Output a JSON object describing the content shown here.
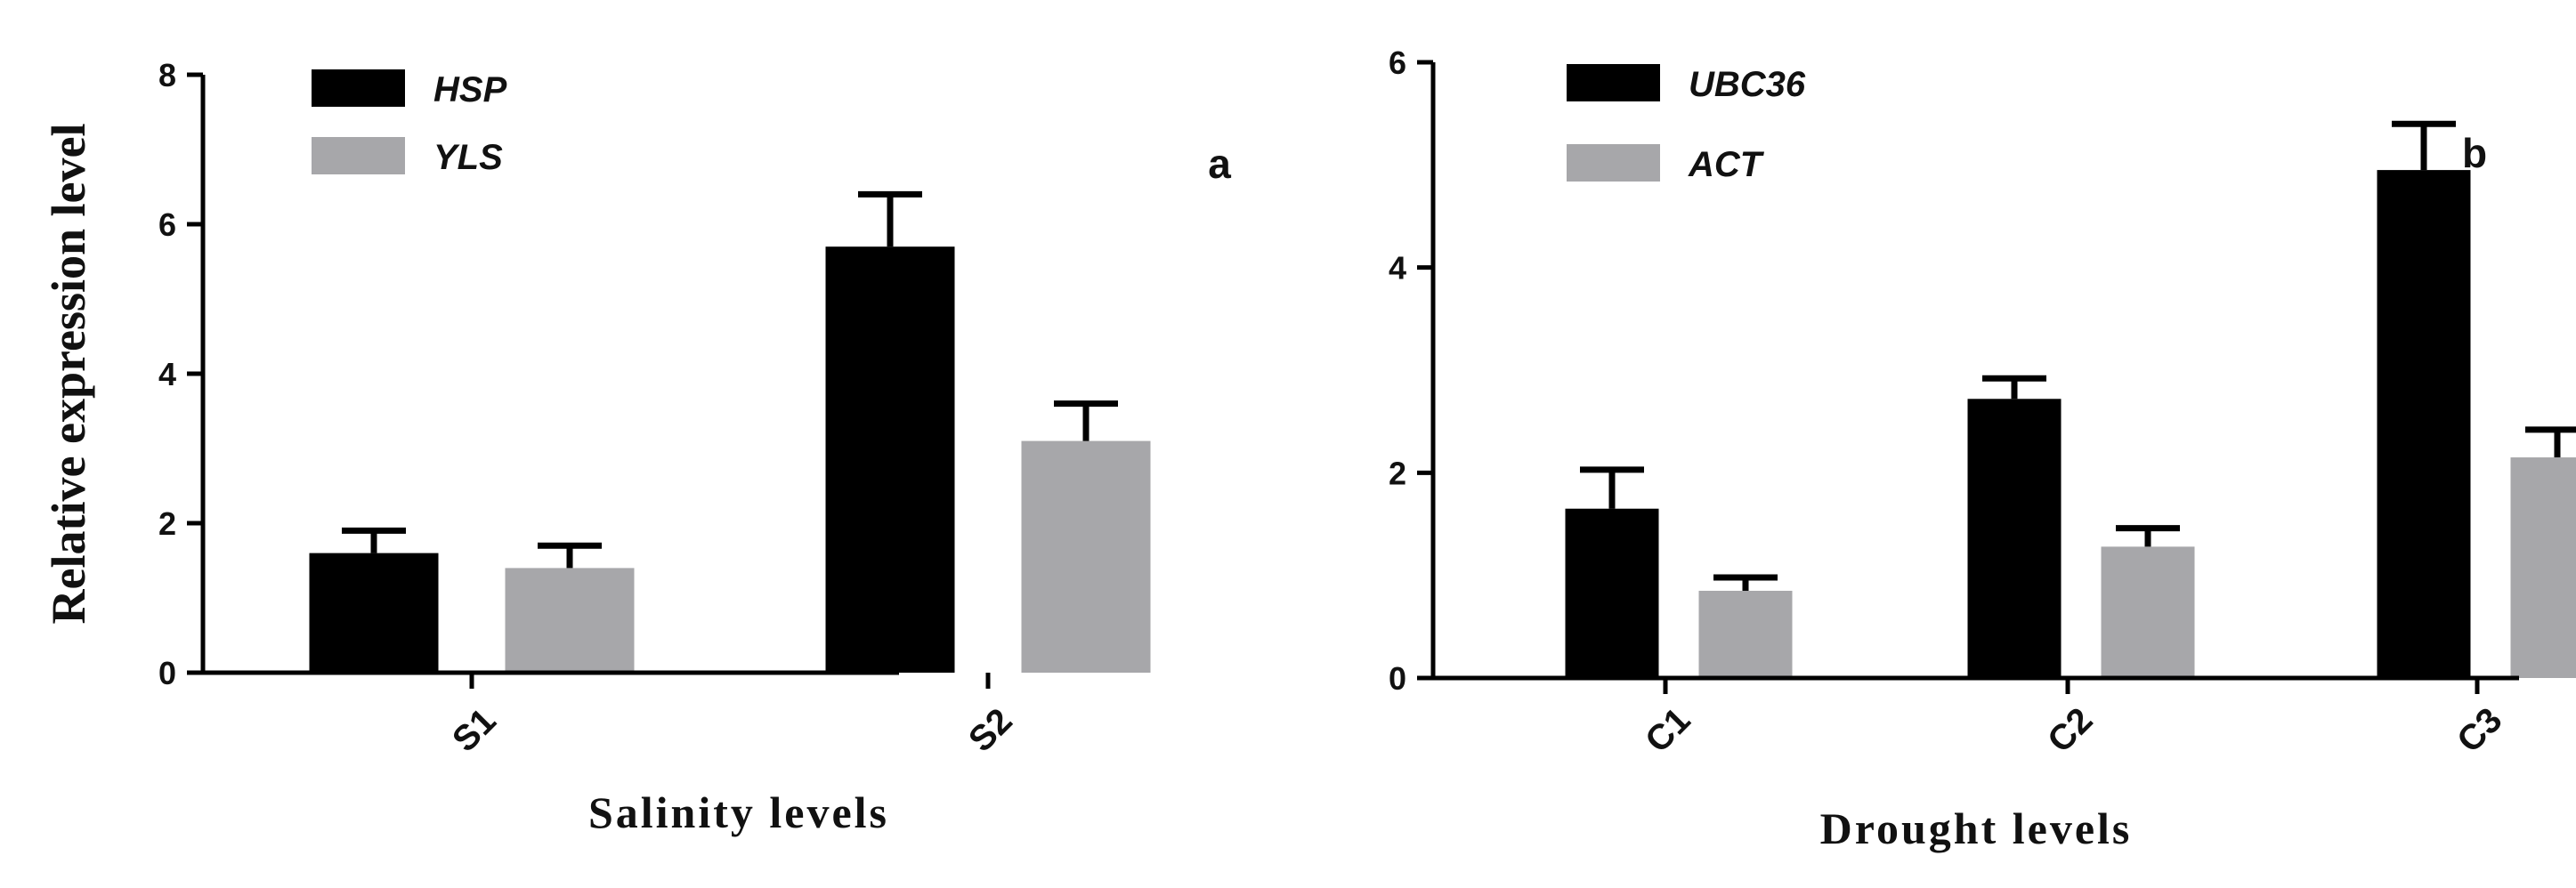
{
  "chart_data": [
    {
      "type": "bar",
      "panel_letter": "a",
      "categories": [
        "S1",
        "S2"
      ],
      "series": [
        {
          "name": "HSP",
          "color": "#000000",
          "values": [
            1.6,
            5.7
          ],
          "errors": [
            0.3,
            0.7
          ]
        },
        {
          "name": "YLS",
          "color": "#a7a7aa",
          "values": [
            1.4,
            3.1
          ],
          "errors": [
            0.3,
            0.5
          ]
        }
      ],
      "xlabel": "Salinity levels",
      "ylabel": "Relative expression level",
      "ylim": [
        0,
        8
      ],
      "yticks": [
        "0",
        "2",
        "4",
        "6",
        "8"
      ],
      "legend_position": "top-left",
      "grid": false
    },
    {
      "type": "bar",
      "panel_letter": "b",
      "categories": [
        "C1",
        "C2",
        "C3"
      ],
      "series": [
        {
          "name": "UBC36",
          "color": "#000000",
          "values": [
            1.65,
            2.72,
            4.95
          ],
          "errors": [
            0.38,
            0.2,
            0.45
          ]
        },
        {
          "name": "ACT",
          "color": "#a7a7aa",
          "values": [
            0.85,
            1.28,
            2.15
          ],
          "errors": [
            0.13,
            0.18,
            0.27
          ]
        }
      ],
      "xlabel": "Drought levels",
      "ylabel": "",
      "ylim": [
        0,
        6
      ],
      "yticks": [
        "0",
        "2",
        "4",
        "6"
      ],
      "legend_position": "top-left",
      "grid": false
    }
  ]
}
